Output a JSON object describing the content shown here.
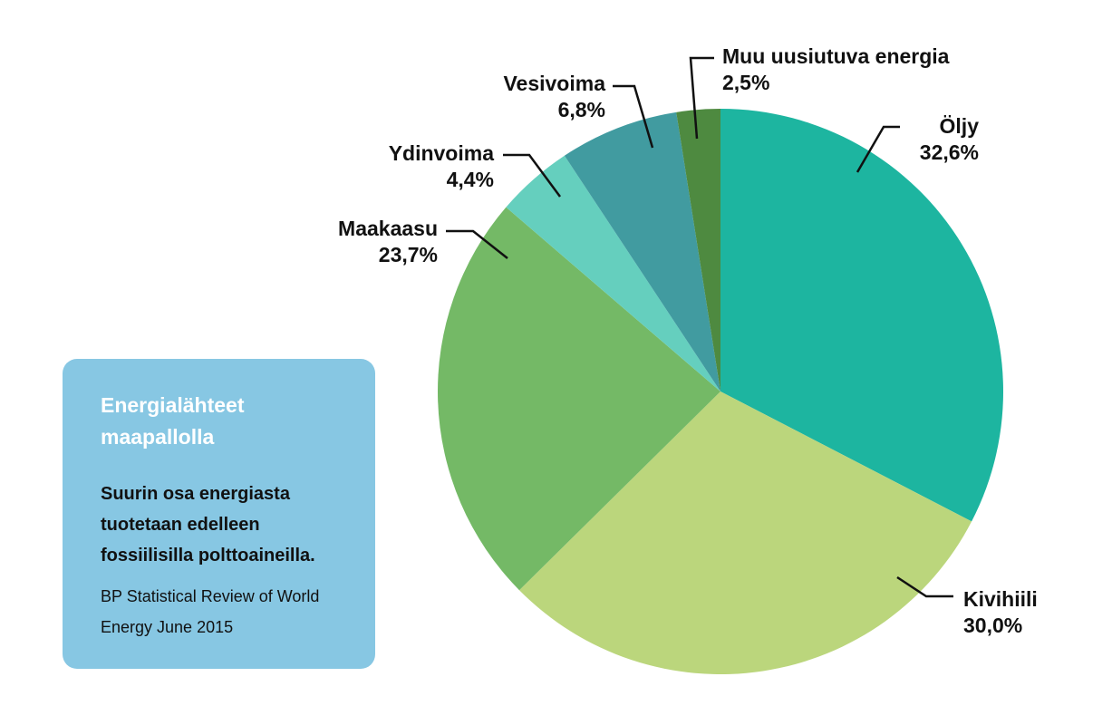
{
  "info_box": {
    "title": "Energialähteet maapallolla",
    "lead": "Suurin osa energiasta tuotetaan edelleen fossiilisilla polttoaineilla.",
    "source": "BP Statistical Review of World Energy June 2015"
  },
  "chart_data": {
    "type": "pie",
    "title": "",
    "slices": [
      {
        "label": "Öljy",
        "value": 32.6,
        "value_label": "32,6%",
        "color": "#1db5a0"
      },
      {
        "label": "Kivihiili",
        "value": 30.0,
        "value_label": "30,0%",
        "color": "#bbd67c"
      },
      {
        "label": "Maakaasu",
        "value": 23.7,
        "value_label": "23,7%",
        "color": "#74b966"
      },
      {
        "label": "Ydinvoima",
        "value": 4.4,
        "value_label": "4,4%",
        "color": "#65cfbe"
      },
      {
        "label": "Vesivoima",
        "value": 6.8,
        "value_label": "6,8%",
        "color": "#419ba0"
      },
      {
        "label": "Muu uusiutuva energia",
        "value": 2.5,
        "value_label": "2,5%",
        "color": "#4e8a40"
      }
    ],
    "legend": "none"
  }
}
